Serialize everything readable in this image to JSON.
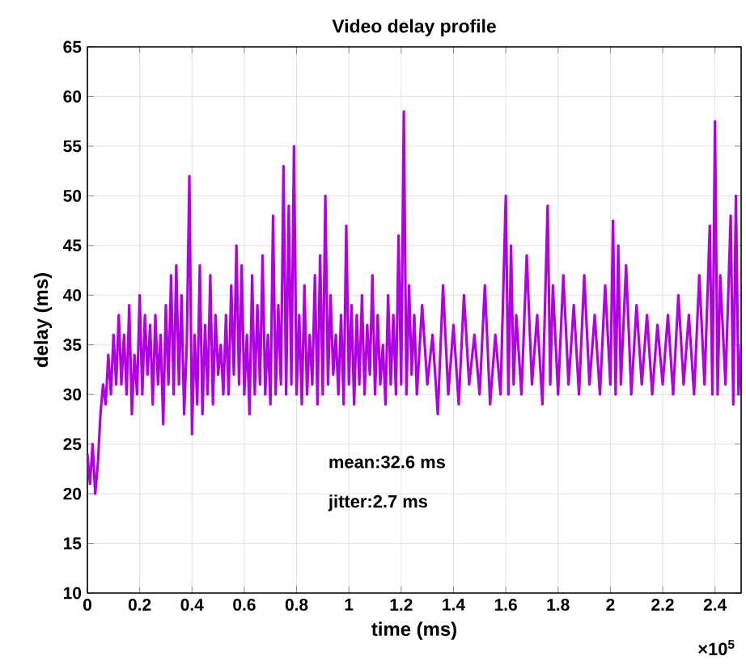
{
  "chart_data": {
    "type": "line",
    "title": "Video delay profile",
    "xlabel": "time (ms)",
    "ylabel": "delay (ms)",
    "annotations": [
      "mean:32.6 ms",
      "jitter:2.7 ms",
      "×10$^{5}$"
    ],
    "xlim": [
      0,
      2.5
    ],
    "ylim": [
      10,
      65
    ],
    "xticks": [
      0,
      0.2,
      0.4,
      0.6,
      0.8,
      1,
      1.2,
      1.4,
      1.6,
      1.8,
      2,
      2.2,
      2.4
    ],
    "yticks": [
      10,
      15,
      20,
      25,
      30,
      35,
      40,
      45,
      50,
      55,
      60,
      65
    ],
    "grid": true,
    "marker": "none",
    "line_style": "solid",
    "series": [
      {
        "color": "#b100e3",
        "x": [
          0,
          0.01,
          0.02,
          0.03,
          0.04,
          0.05,
          0.06,
          0.07,
          0.08,
          0.09,
          0.1,
          0.11,
          0.12,
          0.13,
          0.14,
          0.15,
          0.16,
          0.17,
          0.18,
          0.19,
          0.2,
          0.21,
          0.22,
          0.23,
          0.24,
          0.25,
          0.26,
          0.27,
          0.28,
          0.29,
          0.3,
          0.31,
          0.32,
          0.33,
          0.34,
          0.35,
          0.36,
          0.37,
          0.38,
          0.39,
          0.4,
          0.41,
          0.42,
          0.43,
          0.44,
          0.45,
          0.46,
          0.47,
          0.48,
          0.49,
          0.5,
          0.51,
          0.52,
          0.53,
          0.54,
          0.55,
          0.56,
          0.57,
          0.58,
          0.59,
          0.6,
          0.61,
          0.62,
          0.63,
          0.64,
          0.65,
          0.66,
          0.67,
          0.68,
          0.69,
          0.7,
          0.71,
          0.72,
          0.73,
          0.74,
          0.75,
          0.76,
          0.77,
          0.78,
          0.79,
          0.8,
          0.81,
          0.82,
          0.83,
          0.84,
          0.85,
          0.86,
          0.87,
          0.88,
          0.89,
          0.9,
          0.91,
          0.92,
          0.93,
          0.94,
          0.95,
          0.96,
          0.97,
          0.98,
          0.99,
          1,
          1.01,
          1.02,
          1.03,
          1.04,
          1.05,
          1.06,
          1.07,
          1.08,
          1.09,
          1.1,
          1.11,
          1.12,
          1.13,
          1.14,
          1.15,
          1.16,
          1.17,
          1.18,
          1.19,
          1.2,
          1.21,
          1.22,
          1.23,
          1.24,
          1.25,
          1.26,
          1.28,
          1.3,
          1.32,
          1.34,
          1.36,
          1.38,
          1.4,
          1.42,
          1.44,
          1.46,
          1.48,
          1.5,
          1.52,
          1.54,
          1.56,
          1.58,
          1.6,
          1.61,
          1.62,
          1.63,
          1.64,
          1.66,
          1.68,
          1.7,
          1.72,
          1.74,
          1.76,
          1.77,
          1.78,
          1.8,
          1.82,
          1.84,
          1.86,
          1.88,
          1.9,
          1.92,
          1.94,
          1.96,
          1.98,
          2,
          2.01,
          2.02,
          2.03,
          2.04,
          2.06,
          2.08,
          2.1,
          2.12,
          2.14,
          2.16,
          2.18,
          2.2,
          2.22,
          2.24,
          2.26,
          2.28,
          2.3,
          2.32,
          2.34,
          2.36,
          2.38,
          2.39,
          2.4,
          2.41,
          2.42,
          2.44,
          2.46,
          2.47,
          2.48,
          2.49,
          2.5
        ],
        "values": [
          24,
          21,
          25,
          20,
          23,
          28,
          31,
          29,
          34,
          30,
          36,
          31,
          38,
          31,
          36,
          30,
          39,
          28,
          34,
          30,
          40,
          30,
          38,
          32,
          37,
          29,
          38,
          31,
          36,
          27,
          39,
          31,
          42,
          30,
          43,
          31,
          40,
          28,
          35,
          52,
          26,
          36,
          29,
          43,
          28,
          37,
          30,
          42,
          29,
          38,
          32,
          35,
          30,
          38,
          30,
          41,
          32,
          45,
          31,
          43,
          30,
          36,
          28,
          42,
          30,
          39,
          31,
          44,
          30,
          36,
          29,
          48,
          30,
          39,
          31,
          53,
          30,
          49,
          31,
          55,
          30,
          38,
          29,
          41,
          30,
          36,
          31,
          42,
          29,
          44,
          30,
          50,
          31,
          40,
          32,
          36,
          30,
          38,
          29,
          47,
          31,
          39,
          29,
          38,
          31,
          40,
          30,
          37,
          32,
          42,
          30,
          38,
          31,
          35,
          29,
          40,
          31,
          38,
          30,
          46,
          31,
          58.5,
          30,
          41,
          32,
          38,
          30,
          39,
          31,
          36,
          28,
          41,
          30,
          37,
          29,
          40,
          31,
          36,
          30,
          41,
          29,
          36,
          30,
          50,
          30,
          45,
          31,
          38,
          30,
          44,
          31,
          38,
          29,
          49,
          31,
          41,
          30,
          42,
          31,
          39,
          30,
          42,
          31,
          38,
          30,
          41,
          31,
          47.5,
          30,
          45,
          31,
          43,
          30,
          39,
          31,
          38,
          30,
          37,
          31,
          38,
          30,
          40,
          31,
          38,
          30,
          42,
          31,
          47,
          30,
          57.5,
          30,
          42,
          31,
          48,
          29,
          50,
          30,
          35
        ]
      }
    ]
  }
}
